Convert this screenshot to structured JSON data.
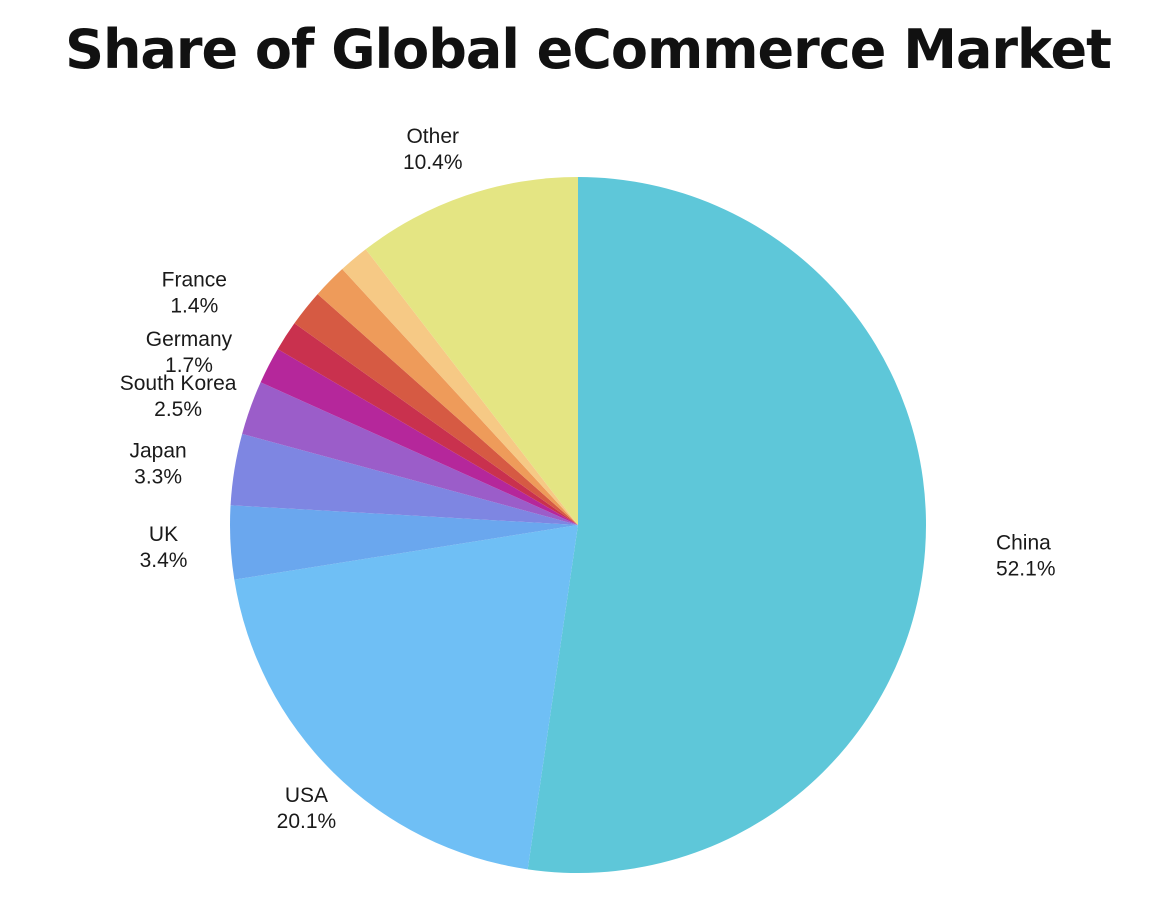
{
  "chart_data": {
    "type": "pie",
    "title": "Share of Global eCommerce Market",
    "start_angle_deg": 0,
    "direction": "clockwise",
    "slices": [
      {
        "label": "China",
        "value": 52.1,
        "value_label": "52.1%",
        "color": "#5ec7d9"
      },
      {
        "label": "USA",
        "value": 20.1,
        "value_label": "20.1%",
        "color": "#6fbff5"
      },
      {
        "label": "UK",
        "value": 3.4,
        "value_label": "3.4%",
        "color": "#6aa7ee"
      },
      {
        "label": "Japan",
        "value": 3.3,
        "value_label": "3.3%",
        "color": "#7e86e2"
      },
      {
        "label": "South Korea",
        "value": 2.5,
        "value_label": "2.5%",
        "color": "#9b5dc9"
      },
      {
        "label": "Germany",
        "value": 1.7,
        "value_label": "1.7%",
        "color": "#b5279b"
      },
      {
        "label": "France",
        "value": 1.4,
        "value_label": "1.4%",
        "color": "#c9314e"
      },
      {
        "label": "",
        "value": 1.7,
        "value_label": "",
        "color": "#d65a43"
      },
      {
        "label": "",
        "value": 1.6,
        "value_label": "",
        "color": "#ee9b5a"
      },
      {
        "label": "",
        "value": 1.4,
        "value_label": "",
        "color": "#f6c985"
      },
      {
        "label": "Other",
        "value": 10.4,
        "value_label": "10.4%",
        "color": "#e4e583"
      }
    ]
  }
}
